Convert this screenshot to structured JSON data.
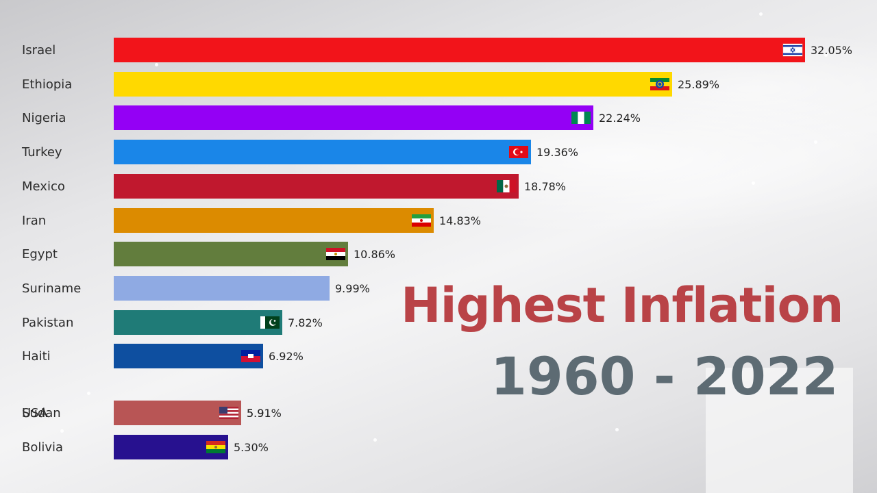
{
  "title": "Highest Inflation",
  "subtitle": "1960 - 2022",
  "chart_data": {
    "type": "bar",
    "orientation": "horizontal",
    "value_unit": "%",
    "xlim": [
      0,
      32.05
    ],
    "categories": [
      "Israel",
      "Ethiopia",
      "Nigeria",
      "Turkey",
      "Mexico",
      "Iran",
      "Egypt",
      "Suriname",
      "Pakistan",
      "Haiti",
      "Sudan",
      "USA",
      "Bolivia"
    ],
    "values": [
      32.05,
      25.89,
      22.24,
      19.36,
      18.78,
      14.83,
      10.86,
      9.99,
      7.82,
      6.92,
      5.91,
      5.9,
      5.3
    ],
    "value_labels": [
      "32.05%",
      "25.89%",
      "22.24%",
      "19.36%",
      "18.78%",
      "14.83%",
      "10.86%",
      "9.99%",
      "7.82%",
      "6.92%",
      "5.91%",
      "5.9",
      "5.30%"
    ],
    "colors": [
      "#f2141a",
      "#ffd900",
      "#9400f5",
      "#1a86e8",
      "#c0182e",
      "#dc8b00",
      "#627d3d",
      "#8faae3",
      "#1f7b77",
      "#0e4fa0",
      "#b85555",
      "#b85555",
      "#27118f"
    ],
    "flags": [
      "israel-flag",
      "ethiopia-flag",
      "nigeria-flag",
      "turkey-flag",
      "mexico-flag",
      "iran-flag",
      "egypt-flag",
      "",
      "pakistan-flag",
      "haiti-flag",
      "",
      "usa-flag",
      "bolivia-flag"
    ],
    "grid": false,
    "legend": "none"
  }
}
